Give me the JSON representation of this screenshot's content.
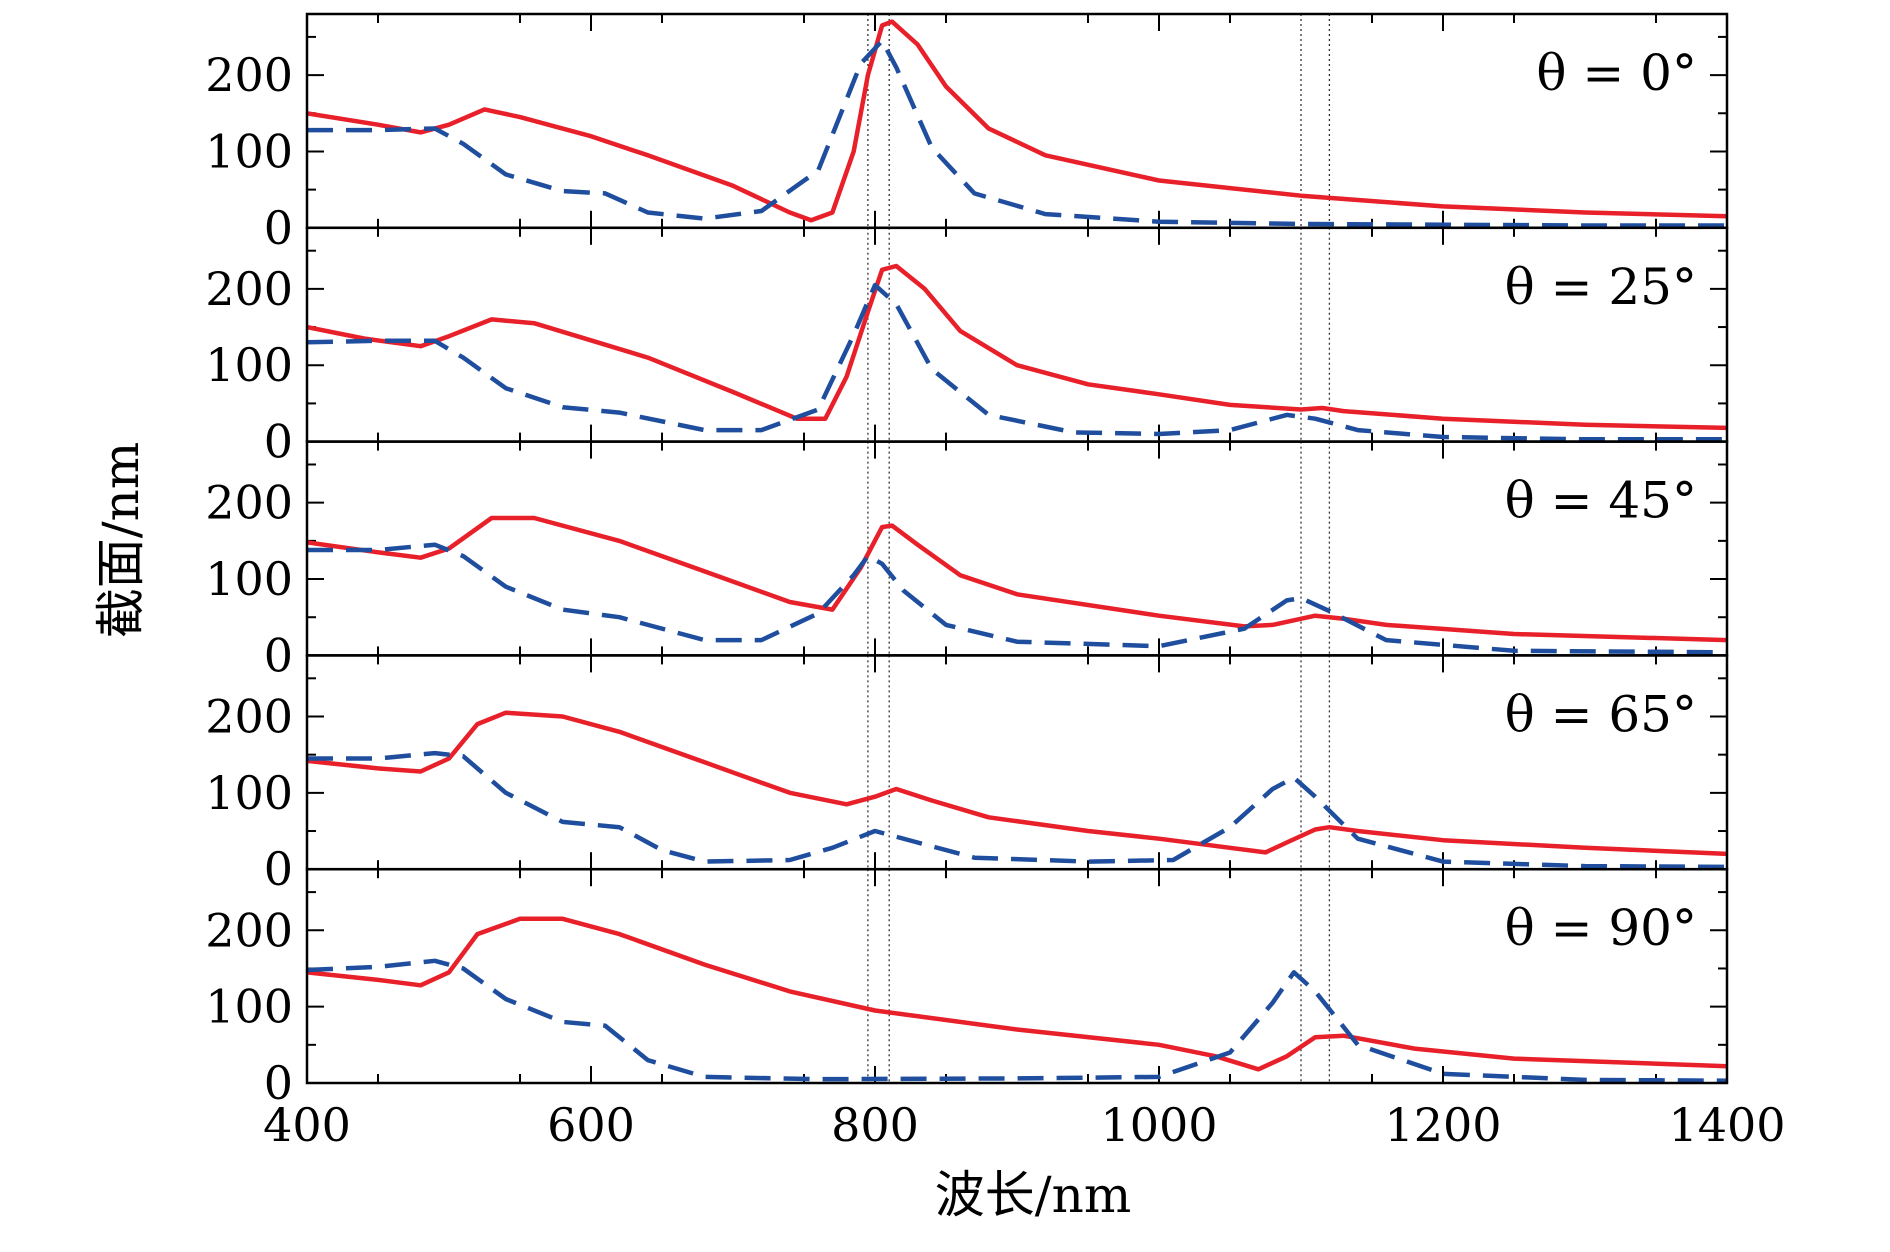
{
  "chart_data": {
    "type": "line",
    "xlabel": "波长/nm",
    "ylabel": "截面/nm",
    "xlim": [
      400,
      1400
    ],
    "ylim": [
      0,
      280
    ],
    "x_ticks": [
      400,
      600,
      800,
      1000,
      1200,
      1400
    ],
    "y_ticks": [
      0,
      100,
      200
    ],
    "vertical_reference_lines": [
      795,
      810,
      1100,
      1120
    ],
    "grid": false,
    "legend": "none",
    "colors": {
      "solid": "#e8202a",
      "dashed": "#1f4e9e"
    },
    "panels": [
      {
        "label": "θ = 0°",
        "series": [
          {
            "style": "solid",
            "points": [
              [
                400,
                150
              ],
              [
                450,
                135
              ],
              [
                480,
                125
              ],
              [
                500,
                135
              ],
              [
                525,
                155
              ],
              [
                550,
                145
              ],
              [
                600,
                120
              ],
              [
                640,
                95
              ],
              [
                700,
                55
              ],
              [
                740,
                20
              ],
              [
                755,
                10
              ],
              [
                770,
                20
              ],
              [
                785,
                100
              ],
              [
                795,
                200
              ],
              [
                805,
                265
              ],
              [
                812,
                270
              ],
              [
                830,
                240
              ],
              [
                850,
                185
              ],
              [
                880,
                130
              ],
              [
                920,
                95
              ],
              [
                1000,
                62
              ],
              [
                1100,
                42
              ],
              [
                1200,
                28
              ],
              [
                1300,
                20
              ],
              [
                1400,
                15
              ]
            ]
          },
          {
            "style": "dashed",
            "points": [
              [
                400,
                128
              ],
              [
                450,
                128
              ],
              [
                490,
                130
              ],
              [
                510,
                110
              ],
              [
                540,
                70
              ],
              [
                580,
                48
              ],
              [
                610,
                45
              ],
              [
                640,
                20
              ],
              [
                680,
                12
              ],
              [
                720,
                22
              ],
              [
                760,
                75
              ],
              [
                790,
                215
              ],
              [
                805,
                245
              ],
              [
                815,
                210
              ],
              [
                840,
                105
              ],
              [
                870,
                45
              ],
              [
                920,
                18
              ],
              [
                1000,
                8
              ],
              [
                1100,
                5
              ],
              [
                1200,
                4
              ],
              [
                1300,
                3
              ],
              [
                1400,
                3
              ]
            ]
          }
        ]
      },
      {
        "label": "θ = 25°",
        "series": [
          {
            "style": "solid",
            "points": [
              [
                400,
                150
              ],
              [
                440,
                135
              ],
              [
                480,
                125
              ],
              [
                500,
                138
              ],
              [
                530,
                160
              ],
              [
                560,
                155
              ],
              [
                640,
                110
              ],
              [
                700,
                65
              ],
              [
                745,
                30
              ],
              [
                765,
                30
              ],
              [
                780,
                85
              ],
              [
                795,
                170
              ],
              [
                805,
                225
              ],
              [
                815,
                230
              ],
              [
                835,
                200
              ],
              [
                860,
                145
              ],
              [
                900,
                100
              ],
              [
                950,
                75
              ],
              [
                1000,
                62
              ],
              [
                1050,
                48
              ],
              [
                1100,
                42
              ],
              [
                1115,
                44
              ],
              [
                1130,
                40
              ],
              [
                1200,
                30
              ],
              [
                1300,
                22
              ],
              [
                1400,
                18
              ]
            ]
          },
          {
            "style": "dashed",
            "points": [
              [
                400,
                130
              ],
              [
                450,
                132
              ],
              [
                490,
                132
              ],
              [
                510,
                110
              ],
              [
                540,
                70
              ],
              [
                580,
                45
              ],
              [
                620,
                38
              ],
              [
                680,
                15
              ],
              [
                720,
                15
              ],
              [
                760,
                42
              ],
              [
                785,
                140
              ],
              [
                800,
                205
              ],
              [
                815,
                180
              ],
              [
                840,
                95
              ],
              [
                880,
                35
              ],
              [
                940,
                12
              ],
              [
                1000,
                10
              ],
              [
                1050,
                15
              ],
              [
                1090,
                35
              ],
              [
                1110,
                30
              ],
              [
                1140,
                15
              ],
              [
                1200,
                6
              ],
              [
                1300,
                3
              ],
              [
                1400,
                3
              ]
            ]
          }
        ]
      },
      {
        "label": "θ = 45°",
        "series": [
          {
            "style": "solid",
            "points": [
              [
                400,
                148
              ],
              [
                450,
                135
              ],
              [
                480,
                128
              ],
              [
                500,
                140
              ],
              [
                530,
                180
              ],
              [
                560,
                180
              ],
              [
                620,
                150
              ],
              [
                680,
                110
              ],
              [
                740,
                70
              ],
              [
                770,
                60
              ],
              [
                790,
                115
              ],
              [
                805,
                168
              ],
              [
                812,
                170
              ],
              [
                830,
                145
              ],
              [
                860,
                105
              ],
              [
                900,
                80
              ],
              [
                1000,
                52
              ],
              [
                1060,
                38
              ],
              [
                1080,
                40
              ],
              [
                1110,
                52
              ],
              [
                1130,
                48
              ],
              [
                1160,
                40
              ],
              [
                1250,
                28
              ],
              [
                1400,
                20
              ]
            ]
          },
          {
            "style": "dashed",
            "points": [
              [
                400,
                138
              ],
              [
                450,
                138
              ],
              [
                490,
                145
              ],
              [
                510,
                130
              ],
              [
                540,
                90
              ],
              [
                580,
                60
              ],
              [
                620,
                50
              ],
              [
                680,
                20
              ],
              [
                720,
                20
              ],
              [
                760,
                55
              ],
              [
                785,
                105
              ],
              [
                795,
                130
              ],
              [
                805,
                120
              ],
              [
                820,
                85
              ],
              [
                850,
                40
              ],
              [
                900,
                18
              ],
              [
                1000,
                12
              ],
              [
                1060,
                35
              ],
              [
                1090,
                72
              ],
              [
                1100,
                75
              ],
              [
                1120,
                58
              ],
              [
                1160,
                20
              ],
              [
                1250,
                6
              ],
              [
                1400,
                4
              ]
            ]
          }
        ]
      },
      {
        "label": "θ = 65°",
        "series": [
          {
            "style": "solid",
            "points": [
              [
                400,
                142
              ],
              [
                450,
                132
              ],
              [
                480,
                128
              ],
              [
                500,
                145
              ],
              [
                520,
                190
              ],
              [
                540,
                205
              ],
              [
                580,
                200
              ],
              [
                620,
                180
              ],
              [
                680,
                140
              ],
              [
                740,
                100
              ],
              [
                780,
                85
              ],
              [
                800,
                95
              ],
              [
                815,
                105
              ],
              [
                840,
                90
              ],
              [
                880,
                68
              ],
              [
                950,
                50
              ],
              [
                1000,
                40
              ],
              [
                1050,
                28
              ],
              [
                1075,
                22
              ],
              [
                1090,
                35
              ],
              [
                1110,
                52
              ],
              [
                1120,
                55
              ],
              [
                1140,
                50
              ],
              [
                1200,
                38
              ],
              [
                1300,
                28
              ],
              [
                1400,
                20
              ]
            ]
          },
          {
            "style": "dashed",
            "points": [
              [
                400,
                145
              ],
              [
                450,
                145
              ],
              [
                490,
                152
              ],
              [
                510,
                148
              ],
              [
                540,
                100
              ],
              [
                580,
                62
              ],
              [
                620,
                55
              ],
              [
                650,
                25
              ],
              [
                680,
                10
              ],
              [
                740,
                12
              ],
              [
                770,
                28
              ],
              [
                800,
                50
              ],
              [
                830,
                35
              ],
              [
                870,
                15
              ],
              [
                950,
                10
              ],
              [
                1010,
                12
              ],
              [
                1050,
                55
              ],
              [
                1080,
                105
              ],
              [
                1095,
                120
              ],
              [
                1110,
                95
              ],
              [
                1140,
                40
              ],
              [
                1200,
                10
              ],
              [
                1300,
                4
              ],
              [
                1400,
                3
              ]
            ]
          }
        ]
      },
      {
        "label": "θ = 90°",
        "series": [
          {
            "style": "solid",
            "points": [
              [
                400,
                145
              ],
              [
                450,
                135
              ],
              [
                480,
                128
              ],
              [
                500,
                145
              ],
              [
                520,
                195
              ],
              [
                550,
                215
              ],
              [
                580,
                215
              ],
              [
                620,
                195
              ],
              [
                680,
                155
              ],
              [
                740,
                120
              ],
              [
                800,
                95
              ],
              [
                900,
                70
              ],
              [
                1000,
                50
              ],
              [
                1040,
                35
              ],
              [
                1070,
                18
              ],
              [
                1090,
                35
              ],
              [
                1110,
                60
              ],
              [
                1130,
                62
              ],
              [
                1180,
                45
              ],
              [
                1250,
                32
              ],
              [
                1400,
                22
              ]
            ]
          },
          {
            "style": "dashed",
            "points": [
              [
                400,
                148
              ],
              [
                450,
                152
              ],
              [
                490,
                160
              ],
              [
                510,
                150
              ],
              [
                540,
                110
              ],
              [
                580,
                80
              ],
              [
                610,
                75
              ],
              [
                640,
                30
              ],
              [
                680,
                8
              ],
              [
                760,
                5
              ],
              [
                900,
                6
              ],
              [
                1000,
                8
              ],
              [
                1050,
                40
              ],
              [
                1080,
                105
              ],
              [
                1095,
                145
              ],
              [
                1110,
                120
              ],
              [
                1140,
                50
              ],
              [
                1200,
                12
              ],
              [
                1300,
                4
              ],
              [
                1400,
                3
              ]
            ]
          }
        ]
      }
    ]
  }
}
